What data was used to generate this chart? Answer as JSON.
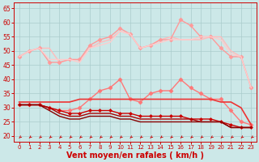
{
  "background_color": "#cce8e8",
  "grid_color": "#aacccc",
  "xlabel": "Vent moyen/en rafales ( km/h )",
  "xlabel_color": "#cc0000",
  "xlabel_fontsize": 7,
  "tick_color": "#cc0000",
  "ylim": [
    18,
    67
  ],
  "xlim": [
    -0.5,
    23.5
  ],
  "yticks": [
    20,
    25,
    30,
    35,
    40,
    45,
    50,
    55,
    60,
    65
  ],
  "xticks": [
    0,
    1,
    2,
    3,
    4,
    5,
    6,
    7,
    8,
    9,
    10,
    11,
    12,
    13,
    14,
    15,
    16,
    17,
    18,
    19,
    20,
    21,
    22,
    23
  ],
  "series": [
    {
      "color": "#ffbbbb",
      "linewidth": 1.0,
      "marker": null,
      "y": [
        48,
        50,
        51,
        51,
        46,
        47,
        47,
        51,
        53,
        54,
        57,
        56,
        51,
        52,
        54,
        55,
        54,
        54,
        54,
        55,
        55,
        50,
        48,
        37
      ]
    },
    {
      "color": "#ff9999",
      "linewidth": 1.0,
      "marker": "D",
      "markersize": 2.5,
      "y": [
        48,
        50,
        51,
        46,
        46,
        47,
        47,
        52,
        54,
        55,
        58,
        56,
        51,
        52,
        54,
        54,
        61,
        59,
        55,
        55,
        51,
        48,
        48,
        37
      ]
    },
    {
      "color": "#ffcccc",
      "linewidth": 1.0,
      "marker": null,
      "y": [
        48,
        50,
        51,
        47,
        47,
        47,
        46,
        51,
        52,
        53,
        57,
        56,
        51,
        52,
        53,
        54,
        54,
        54,
        55,
        55,
        54,
        49,
        48,
        37
      ]
    },
    {
      "color": "#ff7777",
      "linewidth": 1.0,
      "marker": "D",
      "markersize": 2.5,
      "y": [
        31,
        31,
        31,
        30,
        29,
        29,
        30,
        33,
        36,
        37,
        40,
        33,
        32,
        35,
        36,
        36,
        40,
        37,
        35,
        33,
        33,
        29,
        25,
        24
      ]
    },
    {
      "color": "#ee3333",
      "linewidth": 1.2,
      "marker": null,
      "y": [
        32,
        32,
        32,
        32,
        32,
        32,
        33,
        33,
        33,
        33,
        33,
        33,
        33,
        33,
        33,
        33,
        33,
        33,
        33,
        33,
        32,
        32,
        30,
        24
      ]
    },
    {
      "color": "#cc0000",
      "linewidth": 1.0,
      "marker": "D",
      "markersize": 2.0,
      "y": [
        31,
        31,
        31,
        30,
        29,
        28,
        28,
        29,
        29,
        29,
        28,
        28,
        27,
        27,
        27,
        27,
        27,
        26,
        26,
        26,
        25,
        24,
        23,
        23
      ]
    },
    {
      "color": "#aa0000",
      "linewidth": 1.0,
      "marker": null,
      "y": [
        31,
        31,
        31,
        30,
        28,
        27,
        27,
        28,
        28,
        28,
        27,
        27,
        26,
        26,
        26,
        26,
        26,
        26,
        25,
        25,
        25,
        23,
        23,
        23
      ]
    },
    {
      "color": "#880000",
      "linewidth": 1.0,
      "marker": null,
      "y": [
        31,
        31,
        31,
        29,
        27,
        26,
        26,
        27,
        27,
        27,
        26,
        26,
        25,
        25,
        25,
        25,
        25,
        25,
        25,
        25,
        25,
        23,
        23,
        23
      ]
    }
  ]
}
